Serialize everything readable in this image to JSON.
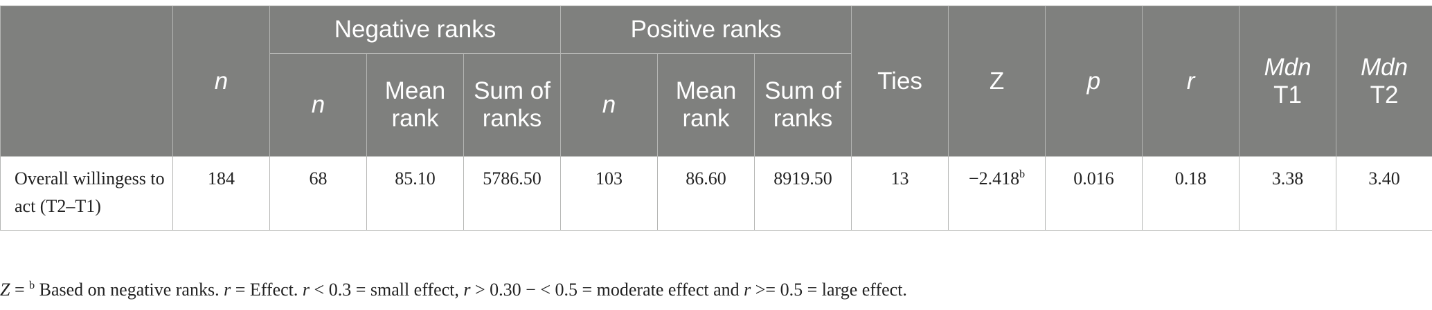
{
  "header": {
    "n": "n",
    "negative_ranks": "Negative ranks",
    "positive_ranks": "Positive ranks",
    "neg_n": "n",
    "neg_mean_rank": "Mean rank",
    "neg_sum_of_ranks": "Sum of ranks",
    "pos_n": "n",
    "pos_mean_rank": "Mean rank",
    "pos_sum_of_ranks": "Sum of ranks",
    "ties": "Ties",
    "z": "Z",
    "p": "p",
    "r": "r",
    "mdn_t1_italic": "Mdn",
    "mdn_t1_rest": "T1",
    "mdn_t2_italic": "Mdn",
    "mdn_t2_rest": "T2"
  },
  "row": {
    "label": "Overall willingess to act (T2–T1)",
    "n": "184",
    "neg_n": "68",
    "neg_mean_rank": "85.10",
    "neg_sum_of_ranks": "5786.50",
    "pos_n": "103",
    "pos_mean_rank": "86.60",
    "pos_sum_of_ranks": "8919.50",
    "ties": "13",
    "z": "−2.418",
    "z_sup": "b",
    "p": "0.016",
    "r": "0.18",
    "mdn_t1": "3.38",
    "mdn_t2": "3.40"
  },
  "note": {
    "z_var": "Z",
    "eq1": " = ",
    "sup_b": "b",
    "t1": " Based on negative ranks. ",
    "r1": "r",
    "t2": " = Effect. ",
    "r2": "r",
    "t3": " < 0.3 = small effect, ",
    "r3": "r",
    "t4": " > 0.30 − < 0.5 = moderate effect and ",
    "r4": "r",
    "t5": " >= 0.5 = large effect."
  }
}
